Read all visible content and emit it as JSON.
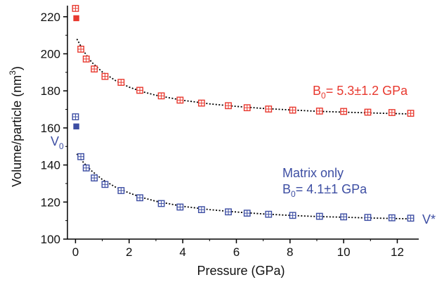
{
  "chart_data": {
    "type": "scatter",
    "xlabel": "Pressure (GPa)",
    "ylabel_text": "Volume/particle (nm",
    "ylabel_sup": "3",
    "ylabel_close": ")",
    "xlim": [
      -0.3,
      12.8
    ],
    "ylim": [
      100,
      226
    ],
    "x_ticks": [
      0,
      2,
      4,
      6,
      8,
      10,
      12
    ],
    "y_ticks": [
      100,
      120,
      140,
      160,
      180,
      200,
      220
    ],
    "grid": false,
    "colors": {
      "red": "#e8392f",
      "blue": "#3d4ea3",
      "fit": "#000000"
    },
    "series": [
      {
        "color_key": "red",
        "x": [
          0.0,
          0.03,
          0.2,
          0.4,
          0.7,
          1.1,
          1.7,
          2.4,
          3.2,
          3.9,
          4.7,
          5.7,
          6.4,
          7.2,
          8.1,
          9.1,
          10.0,
          10.9,
          11.8,
          12.5
        ],
        "y": [
          224.5,
          219.2,
          202.5,
          197.2,
          191.8,
          187.8,
          184.6,
          180.3,
          177.3,
          175.0,
          173.4,
          172.0,
          170.9,
          170.2,
          169.6,
          169.1,
          168.9,
          168.5,
          168.3,
          167.9
        ],
        "filled": [
          false,
          true,
          false,
          false,
          false,
          false,
          false,
          false,
          false,
          false,
          false,
          false,
          false,
          false,
          false,
          false,
          false,
          false,
          false,
          false
        ],
        "fit_x": [
          0.05,
          0.3,
          0.6,
          1.0,
          1.5,
          2.0,
          2.5,
          3.0,
          4.0,
          5.0,
          6.0,
          7.0,
          8.0,
          9.0,
          10.0,
          11.0,
          12.0,
          12.55
        ],
        "fit_y": [
          208.0,
          201.5,
          195.5,
          190.2,
          185.5,
          182.0,
          179.5,
          177.6,
          174.9,
          173.0,
          171.6,
          170.5,
          169.7,
          169.0,
          168.5,
          168.1,
          167.7,
          167.5
        ]
      },
      {
        "color_key": "blue",
        "x": [
          0.0,
          0.03,
          0.2,
          0.4,
          0.7,
          1.1,
          1.7,
          2.4,
          3.2,
          3.9,
          4.7,
          5.7,
          6.4,
          7.2,
          8.1,
          9.1,
          10.0,
          10.9,
          11.8,
          12.5
        ],
        "y": [
          166.0,
          160.8,
          144.5,
          138.4,
          133.0,
          129.5,
          126.2,
          122.3,
          119.2,
          117.3,
          115.9,
          114.7,
          114.0,
          113.4,
          112.8,
          112.3,
          112.0,
          111.7,
          111.5,
          111.3
        ],
        "filled": [
          false,
          true,
          false,
          false,
          false,
          false,
          false,
          false,
          false,
          false,
          false,
          false,
          false,
          false,
          false,
          false,
          false,
          false,
          false,
          false
        ],
        "fit_x": [
          0.05,
          0.3,
          0.6,
          1.0,
          1.5,
          2.0,
          2.5,
          3.0,
          4.0,
          5.0,
          6.0,
          7.0,
          8.0,
          9.0,
          10.0,
          11.0,
          12.0,
          12.55
        ],
        "fit_y": [
          146.0,
          141.3,
          136.8,
          132.2,
          128.0,
          124.9,
          122.4,
          120.4,
          117.7,
          115.9,
          114.6,
          113.6,
          112.8,
          112.2,
          111.8,
          111.4,
          111.1,
          110.9
        ]
      }
    ],
    "annotations": [
      {
        "id": "b0-red",
        "prefix": "B",
        "sub": "0",
        "rest": "= 5.3±1.2 GPa",
        "color_key": "red"
      },
      {
        "id": "matrix-only",
        "text": "Matrix only",
        "color_key": "blue"
      },
      {
        "id": "b0-blue",
        "prefix": "B",
        "sub": "0",
        "rest": "= 4.1±1 GPa",
        "color_key": "blue"
      },
      {
        "id": "v0",
        "prefix": "V",
        "sub": "0",
        "rest": "",
        "color_key": "blue"
      },
      {
        "id": "vstar",
        "text": "V*",
        "color_key": "blue"
      }
    ]
  }
}
